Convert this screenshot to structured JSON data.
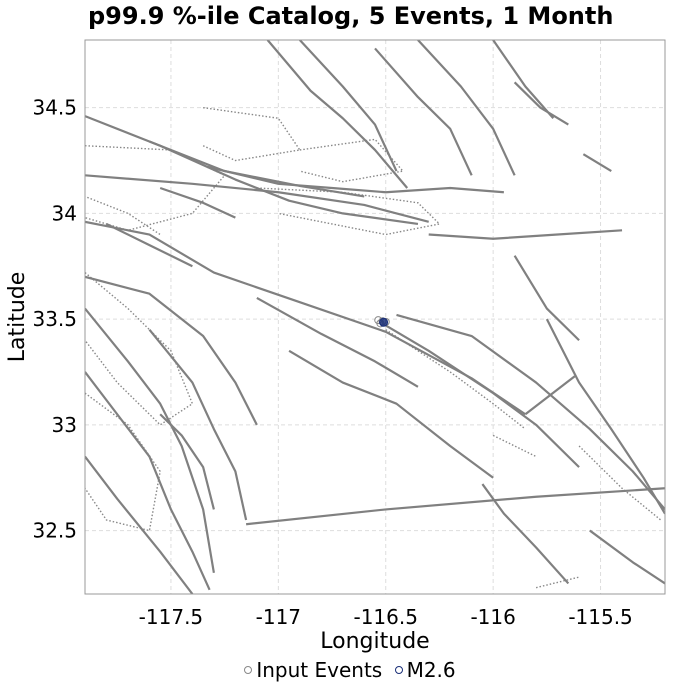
{
  "chart_data": {
    "type": "scatter",
    "title": "p99.9 %-ile Catalog, 5 Events, 1 Month",
    "xlabel": "Longitude",
    "ylabel": "Latitude",
    "xlim": [
      -117.9,
      -115.2
    ],
    "ylim": [
      32.2,
      34.82
    ],
    "x_ticks": [
      -117.5,
      -117,
      -116.5,
      -116,
      -115.5
    ],
    "x_tick_labels": [
      "-117.5",
      "-117",
      "-116.5",
      "-116",
      "-115.5"
    ],
    "y_ticks": [
      32.5,
      33,
      33.5,
      34,
      34.5
    ],
    "y_tick_labels": [
      "32.5",
      "33",
      "33.5",
      "34",
      "34.5"
    ],
    "grid": true,
    "legend_position": "bottom",
    "series": [
      {
        "name": "Input Events",
        "color": "#888888",
        "points": [
          {
            "x": -116.535,
            "y": 33.495
          },
          {
            "x": -116.515,
            "y": 33.49
          },
          {
            "x": -116.5,
            "y": 33.487
          },
          {
            "x": -116.525,
            "y": 33.48
          }
        ]
      },
      {
        "name": "M2.6",
        "color": "#1a2f78",
        "points": [
          {
            "x": -116.51,
            "y": 33.485
          }
        ]
      }
    ],
    "faults": [
      [
        [
          -117.9,
          34.46
        ],
        [
          -117.55,
          34.32
        ],
        [
          -117.2,
          34.16
        ],
        [
          -116.95,
          34.06
        ],
        [
          -116.7,
          34.0
        ],
        [
          -116.35,
          33.95
        ]
      ],
      [
        [
          -117.9,
          34.18
        ],
        [
          -117.4,
          34.14
        ],
        [
          -117.0,
          34.1
        ],
        [
          -116.6,
          34.04
        ],
        [
          -116.3,
          33.96
        ]
      ],
      [
        [
          -117.6,
          34.34
        ],
        [
          -117.25,
          34.2
        ],
        [
          -116.9,
          34.13
        ],
        [
          -116.6,
          34.08
        ]
      ],
      [
        [
          -117.33,
          34.22
        ],
        [
          -117.0,
          34.14
        ],
        [
          -116.75,
          34.12
        ],
        [
          -116.5,
          34.1
        ],
        [
          -116.2,
          34.12
        ],
        [
          -115.95,
          34.1
        ]
      ],
      [
        [
          -117.9,
          33.96
        ],
        [
          -117.6,
          33.9
        ],
        [
          -117.3,
          33.72
        ],
        [
          -116.9,
          33.58
        ],
        [
          -116.5,
          33.44
        ],
        [
          -116.1,
          33.22
        ],
        [
          -115.85,
          33.05
        ]
      ],
      [
        [
          -117.9,
          33.7
        ],
        [
          -117.6,
          33.62
        ],
        [
          -117.35,
          33.42
        ],
        [
          -117.2,
          33.2
        ],
        [
          -117.1,
          33.0
        ]
      ],
      [
        [
          -117.6,
          33.45
        ],
        [
          -117.4,
          33.2
        ],
        [
          -117.3,
          32.98
        ],
        [
          -117.2,
          32.78
        ],
        [
          -117.15,
          32.55
        ]
      ],
      [
        [
          -117.9,
          33.55
        ],
        [
          -117.7,
          33.3
        ],
        [
          -117.55,
          33.1
        ],
        [
          -117.45,
          32.9
        ],
        [
          -117.35,
          32.6
        ],
        [
          -117.3,
          32.3
        ]
      ],
      [
        [
          -117.9,
          33.25
        ],
        [
          -117.75,
          33.05
        ],
        [
          -117.6,
          32.85
        ],
        [
          -117.5,
          32.6
        ],
        [
          -117.4,
          32.4
        ],
        [
          -117.32,
          32.22
        ]
      ],
      [
        [
          -117.9,
          32.85
        ],
        [
          -117.75,
          32.65
        ],
        [
          -117.55,
          32.4
        ],
        [
          -117.4,
          32.2
        ]
      ],
      [
        [
          -117.1,
          33.6
        ],
        [
          -116.8,
          33.43
        ],
        [
          -116.55,
          33.3
        ],
        [
          -116.35,
          33.18
        ]
      ],
      [
        [
          -116.95,
          33.35
        ],
        [
          -116.7,
          33.2
        ],
        [
          -116.45,
          33.1
        ],
        [
          -116.2,
          32.9
        ],
        [
          -116.0,
          32.75
        ]
      ],
      [
        [
          -116.5,
          33.47
        ],
        [
          -116.3,
          33.35
        ],
        [
          -116.0,
          33.15
        ],
        [
          -115.8,
          33.0
        ],
        [
          -115.6,
          32.8
        ]
      ],
      [
        [
          -116.45,
          33.52
        ],
        [
          -116.1,
          33.42
        ],
        [
          -115.8,
          33.2
        ],
        [
          -115.55,
          32.98
        ],
        [
          -115.35,
          32.78
        ],
        [
          -115.2,
          32.6
        ]
      ],
      [
        [
          -117.05,
          34.82
        ],
        [
          -116.85,
          34.58
        ],
        [
          -116.7,
          34.45
        ],
        [
          -116.55,
          34.3
        ],
        [
          -116.4,
          34.12
        ]
      ],
      [
        [
          -116.9,
          34.82
        ],
        [
          -116.7,
          34.6
        ],
        [
          -116.55,
          34.42
        ],
        [
          -116.45,
          34.2
        ]
      ],
      [
        [
          -116.55,
          34.78
        ],
        [
          -116.35,
          34.55
        ],
        [
          -116.2,
          34.4
        ],
        [
          -116.1,
          34.18
        ]
      ],
      [
        [
          -116.35,
          34.82
        ],
        [
          -116.15,
          34.6
        ],
        [
          -116.0,
          34.4
        ],
        [
          -115.9,
          34.18
        ]
      ],
      [
        [
          -116.0,
          34.82
        ],
        [
          -115.85,
          34.6
        ],
        [
          -115.72,
          34.45
        ]
      ],
      [
        [
          -116.3,
          33.9
        ],
        [
          -116.0,
          33.88
        ],
        [
          -115.7,
          33.9
        ],
        [
          -115.4,
          33.92
        ]
      ],
      [
        [
          -115.9,
          33.8
        ],
        [
          -115.75,
          33.55
        ],
        [
          -115.6,
          33.4
        ]
      ],
      [
        [
          -115.85,
          33.05
        ],
        [
          -115.62,
          33.23
        ]
      ],
      [
        [
          -115.75,
          33.5
        ],
        [
          -115.6,
          33.2
        ],
        [
          -115.45,
          32.98
        ],
        [
          -115.3,
          32.75
        ],
        [
          -115.2,
          32.58
        ]
      ],
      [
        [
          -116.05,
          32.72
        ],
        [
          -115.95,
          32.58
        ],
        [
          -115.8,
          32.42
        ],
        [
          -115.65,
          32.25
        ]
      ],
      [
        [
          -115.55,
          32.5
        ],
        [
          -115.35,
          32.35
        ],
        [
          -115.2,
          32.25
        ]
      ],
      [
        [
          -117.15,
          32.53
        ],
        [
          -116.5,
          32.6
        ],
        [
          -115.8,
          32.66
        ],
        [
          -115.2,
          32.7
        ]
      ],
      [
        [
          -117.55,
          33.05
        ],
        [
          -117.45,
          32.95
        ],
        [
          -117.35,
          32.8
        ],
        [
          -117.3,
          32.6
        ]
      ],
      [
        [
          -117.8,
          33.95
        ],
        [
          -117.6,
          33.85
        ],
        [
          -117.4,
          33.75
        ]
      ],
      [
        [
          -117.55,
          34.12
        ],
        [
          -117.35,
          34.05
        ],
        [
          -117.2,
          33.98
        ]
      ],
      [
        [
          -115.9,
          34.62
        ],
        [
          -115.78,
          34.5
        ],
        [
          -115.65,
          34.42
        ]
      ],
      [
        [
          -115.58,
          34.28
        ],
        [
          -115.45,
          34.2
        ]
      ]
    ],
    "zones": [
      [
        [
          -117.9,
          34.32
        ],
        [
          -117.5,
          34.3
        ],
        [
          -117.25,
          34.18
        ],
        [
          -117.4,
          34.0
        ],
        [
          -117.7,
          33.92
        ],
        [
          -117.9,
          33.98
        ]
      ],
      [
        [
          -117.35,
          34.5
        ],
        [
          -117.0,
          34.45
        ],
        [
          -116.9,
          34.3
        ],
        [
          -117.2,
          34.25
        ],
        [
          -117.35,
          34.32
        ]
      ],
      [
        [
          -116.9,
          34.3
        ],
        [
          -116.55,
          34.35
        ],
        [
          -116.42,
          34.2
        ],
        [
          -116.7,
          34.15
        ],
        [
          -116.9,
          34.2
        ]
      ],
      [
        [
          -117.1,
          34.12
        ],
        [
          -116.7,
          34.1
        ],
        [
          -116.35,
          34.05
        ],
        [
          -116.25,
          33.95
        ],
        [
          -116.5,
          33.9
        ],
        [
          -117.0,
          34.0
        ]
      ],
      [
        [
          -117.9,
          33.72
        ],
        [
          -117.7,
          33.55
        ],
        [
          -117.5,
          33.35
        ],
        [
          -117.4,
          33.1
        ],
        [
          -117.55,
          33.0
        ],
        [
          -117.75,
          33.2
        ],
        [
          -117.9,
          33.4
        ]
      ],
      [
        [
          -117.9,
          33.15
        ],
        [
          -117.7,
          33.0
        ],
        [
          -117.55,
          32.78
        ],
        [
          -117.6,
          32.5
        ],
        [
          -117.8,
          32.55
        ],
        [
          -117.9,
          32.7
        ]
      ],
      [
        [
          -116.5,
          33.45
        ],
        [
          -116.2,
          33.25
        ],
        [
          -116.0,
          33.1
        ],
        [
          -115.85,
          32.98
        ]
      ],
      [
        [
          -116.0,
          32.95
        ],
        [
          -115.8,
          32.85
        ]
      ],
      [
        [
          -115.6,
          32.9
        ],
        [
          -115.4,
          32.7
        ],
        [
          -115.22,
          32.55
        ]
      ],
      [
        [
          -115.8,
          32.23
        ],
        [
          -115.6,
          32.28
        ]
      ],
      [
        [
          -117.95,
          34.1
        ],
        [
          -117.7,
          34.0
        ],
        [
          -117.55,
          33.9
        ]
      ]
    ]
  },
  "legend": {
    "items": [
      {
        "label": "Input Events",
        "color": "#888888"
      },
      {
        "label": "M2.6",
        "color": "#1a2f78"
      }
    ]
  }
}
